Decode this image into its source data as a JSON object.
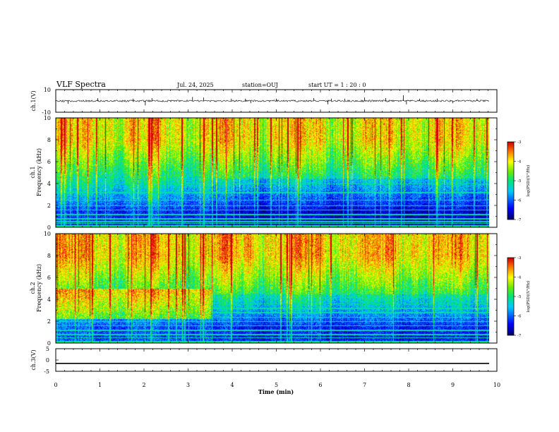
{
  "header": {
    "title": "VLF Spectra",
    "date": "Jul. 24, 2025",
    "station": "station=OUJ",
    "start_ut": "start UT =  1 : 20 : 0"
  },
  "chart_data": [
    {
      "panel": "ch1-waveform",
      "type": "line",
      "ylabel": "ch.1(V)",
      "ylim": [
        -10,
        10
      ],
      "yticks": [
        "10",
        "-10"
      ],
      "xlim": [
        0,
        10
      ],
      "baseline": 0,
      "noise_amplitude": 1,
      "spikes": [
        {
          "t": 0.28,
          "v": -2.5
        },
        {
          "t": 0.95,
          "v": 2.5
        },
        {
          "t": 1.75,
          "v": 2.0
        },
        {
          "t": 2.03,
          "v": -4.0
        },
        {
          "t": 2.18,
          "v": 2.5
        },
        {
          "t": 3.1,
          "v": 3.5
        },
        {
          "t": 3.35,
          "v": 3.0
        },
        {
          "t": 3.98,
          "v": 2.0
        },
        {
          "t": 4.3,
          "v": 2.0
        },
        {
          "t": 4.42,
          "v": -2.0
        },
        {
          "t": 5.0,
          "v": 2.0
        },
        {
          "t": 5.85,
          "v": 2.5
        },
        {
          "t": 6.17,
          "v": -3.0
        },
        {
          "t": 6.25,
          "v": 2.0
        },
        {
          "t": 6.55,
          "v": 2.0
        },
        {
          "t": 7.0,
          "v": 3.0
        },
        {
          "t": 7.48,
          "v": 2.5
        },
        {
          "t": 7.88,
          "v": 5.0
        },
        {
          "t": 7.95,
          "v": -3.0
        },
        {
          "t": 8.25,
          "v": 2.0
        },
        {
          "t": 8.65,
          "v": 2.0
        },
        {
          "t": 9.0,
          "v": -2.0
        },
        {
          "t": 9.55,
          "v": 2.0
        }
      ]
    },
    {
      "panel": "ch1-spectrogram",
      "type": "heatmap",
      "ylabel_line1": "ch.1",
      "ylabel_line2": "Frequency (kHz)",
      "ylim": [
        0,
        10
      ],
      "yticks": [
        "0",
        "2",
        "4",
        "6",
        "8",
        "10"
      ],
      "xlim": [
        0,
        9.8
      ],
      "colorbar": {
        "label": "log(PSD)(V²/Hz)",
        "range": [
          -7,
          -3
        ],
        "ticks": [
          "-3",
          "-4",
          "-5",
          "-6",
          "-7"
        ]
      },
      "lines_khz": [
        0.4,
        0.55,
        0.8,
        1.2,
        1.6,
        2.0,
        2.5,
        3.2,
        4.0
      ],
      "description_levels": {
        "high_freq_mean": -4.0,
        "low_freq_mean": -6.3
      }
    },
    {
      "panel": "ch2-spectrogram",
      "type": "heatmap",
      "ylabel_line1": "ch.2",
      "ylabel_line2": "Frequency (kHz)",
      "ylim": [
        0,
        10
      ],
      "yticks": [
        "0",
        "2",
        "4",
        "6",
        "8",
        "10"
      ],
      "xlim": [
        0,
        9.8
      ],
      "colorbar": {
        "label": "log(PSD)(V²/Hz)",
        "range": [
          -7,
          -3
        ],
        "ticks": [
          "-3",
          "-4",
          "-5",
          "-6",
          "-7"
        ]
      },
      "lines_khz": [
        0.5,
        0.8,
        1.2,
        1.6,
        2.0,
        2.4,
        2.8,
        3.2,
        3.6,
        4.2
      ],
      "band_until_min": 3.5,
      "band_khz": [
        2.2,
        5.0
      ],
      "description_levels": {
        "high_freq_mean": -3.8,
        "low_freq_mean": -6.1
      }
    },
    {
      "panel": "ch3-waveform",
      "type": "line",
      "ylabel": "ch.3(V)",
      "ylim": [
        -5,
        5
      ],
      "yticks": [
        "5",
        "0",
        "-5"
      ],
      "xlim": [
        0,
        10
      ],
      "constant_value": -1.5,
      "xlabel": "Time (min)",
      "xticks": [
        "0",
        "1",
        "2",
        "3",
        "4",
        "5",
        "6",
        "7",
        "8",
        "9",
        "10"
      ]
    }
  ]
}
